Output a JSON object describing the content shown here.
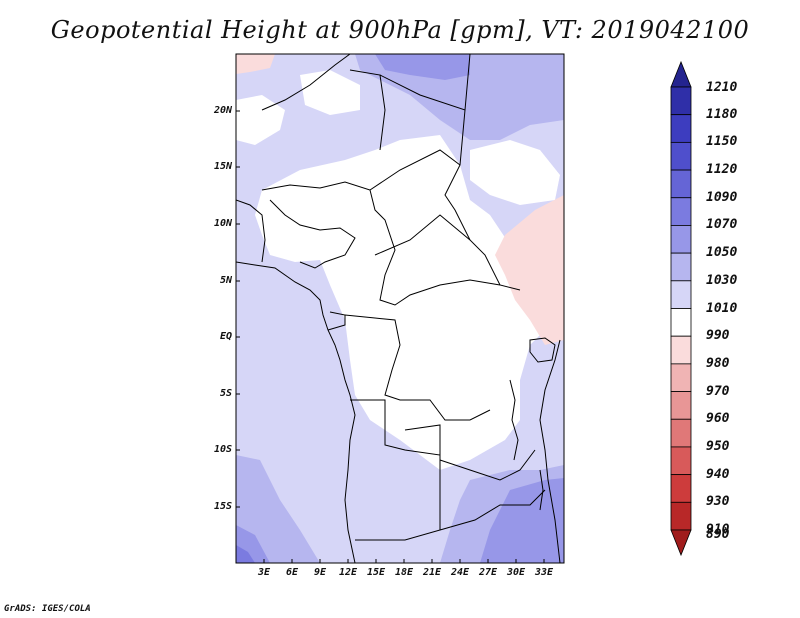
{
  "title": "Geopotential Height at 900hPa [gpm], VT: 2019042100",
  "footer": "GrADS: IGES/COLA",
  "lat_labels": [
    "20N",
    "15N",
    "10N",
    "5N",
    "EQ",
    "5S",
    "10S",
    "15S"
  ],
  "lon_labels": [
    "3E",
    "6E",
    "9E",
    "12E",
    "15E",
    "18E",
    "21E",
    "24E",
    "27E",
    "30E",
    "33E"
  ],
  "colorbar": {
    "labels": [
      "1210",
      "1180",
      "1150",
      "1120",
      "1090",
      "1070",
      "1050",
      "1030",
      "1010",
      "990",
      "980",
      "970",
      "960",
      "950",
      "940",
      "930",
      "910",
      "890"
    ],
    "colors": [
      "#24248f",
      "#2f2fa8",
      "#3d3dbf",
      "#4f4fcc",
      "#6565d6",
      "#7b7be0",
      "#9797e8",
      "#b6b6ef",
      "#d6d6f7",
      "#ffffff",
      "#fadcdc",
      "#f0b4b4",
      "#e89696",
      "#e07878",
      "#d85a5a",
      "#cd3c3c",
      "#b82828",
      "#a01c1c"
    ]
  }
}
